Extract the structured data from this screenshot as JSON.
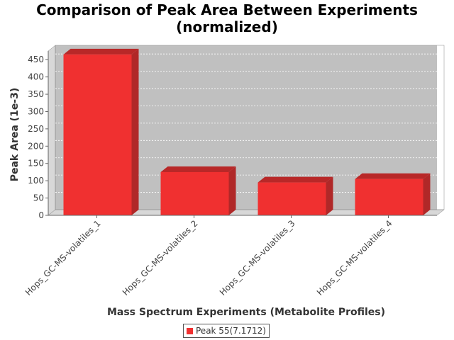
{
  "chart_data": {
    "type": "bar",
    "title_lines": [
      "Comparison of Peak Area Between Experiments",
      "(normalized)"
    ],
    "xlabel": "Mass Spectrum Experiments (Metabolite Profiles)",
    "ylabel": "Peak Area (1e-3)",
    "categories": [
      "Hops_GC-MS-volatiles_1",
      "Hops_GC-MS-volatiles_2",
      "Hops_GC-MS-volatiles_3",
      "Hops_GC-MS-volatiles_4"
    ],
    "series": [
      {
        "name": "Peak 55(7.1712)",
        "values": [
          465,
          125,
          95,
          105
        ]
      }
    ],
    "ylim": [
      0,
      475
    ],
    "yticks": [
      0,
      50,
      100,
      150,
      200,
      250,
      300,
      350,
      400,
      450
    ],
    "grid": true,
    "legend_position": "bottom",
    "colors": {
      "bar_front": "#f03030",
      "bar_top": "#b82828",
      "bar_side": "#b02828",
      "plot_bg": "#c0c0c0",
      "wall": "#d8d8d8",
      "grid": "#ffffff"
    }
  }
}
